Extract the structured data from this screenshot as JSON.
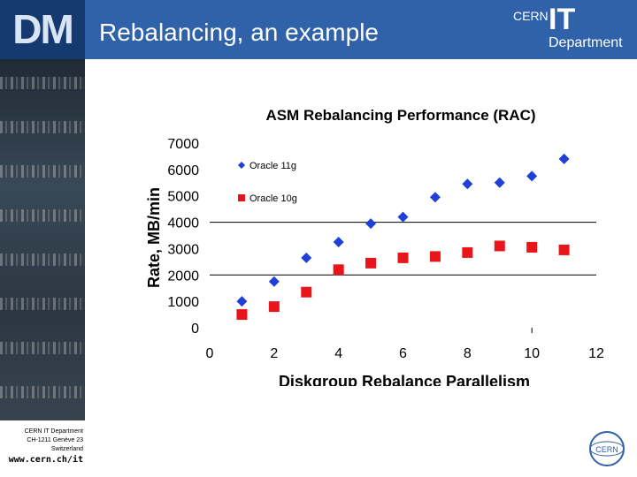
{
  "header": {
    "logo_text": "DM",
    "title": "Rebalancing, an example",
    "org_logo": {
      "cern": "CERN",
      "it": "IT",
      "department": "Department"
    }
  },
  "footer": {
    "line1": "CERN IT Department",
    "line2": "CH-1211 Genève 23",
    "line3": "Switzerland",
    "url": "www.cern.ch/it",
    "badge_text": "CERN"
  },
  "colors": {
    "header_bg": "#2f62a8",
    "oracle11g": "#1f3fd6",
    "oracle10g": "#e8161b"
  },
  "chart_data": {
    "type": "scatter",
    "title": "ASM Rebalancing Performance (RAC)",
    "xlabel": "Diskgroup Rebalance Parallelism",
    "ylabel": "Rate, MB/min",
    "xlim": [
      0,
      12
    ],
    "ylim": [
      0,
      7000
    ],
    "xticks": [
      0,
      2,
      4,
      6,
      8,
      10,
      12
    ],
    "yticks": [
      0,
      1000,
      2000,
      3000,
      4000,
      5000,
      6000,
      7000
    ],
    "gridlines_y": [
      2000,
      4000
    ],
    "legend_position": "top-left",
    "series": [
      {
        "name": "Oracle 11g",
        "marker": "diamond",
        "color": "#1f3fd6",
        "x": [
          1,
          2,
          3,
          4,
          5,
          6,
          7,
          8,
          9,
          10,
          11
        ],
        "y": [
          1000,
          1750,
          2650,
          3250,
          3950,
          4200,
          4950,
          5450,
          5500,
          5750,
          6400
        ]
      },
      {
        "name": "Oracle 10g",
        "marker": "square",
        "color": "#e8161b",
        "x": [
          1,
          2,
          3,
          4,
          5,
          6,
          7,
          8,
          9,
          10,
          11
        ],
        "y": [
          500,
          800,
          1350,
          2200,
          2450,
          2650,
          2700,
          2850,
          3100,
          3050,
          2950
        ]
      }
    ]
  }
}
